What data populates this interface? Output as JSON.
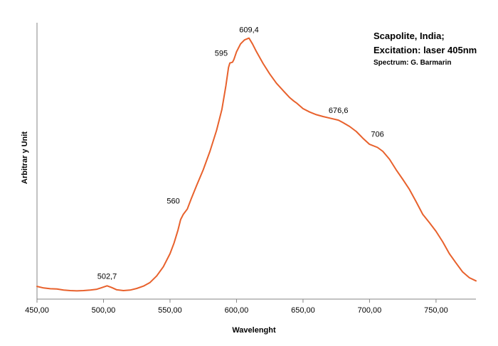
{
  "chart_data": {
    "type": "line",
    "title_lines": [
      "Scapolite, India;",
      "Excitation: laser 405nm"
    ],
    "credit": "Spectrum: G. Barmarin",
    "xlabel": "Wavelenght",
    "ylabel": "Arbitrar y Unit",
    "xlim": [
      450,
      780
    ],
    "ylim": [
      0,
      1
    ],
    "x_ticks": [
      450,
      500,
      550,
      600,
      650,
      700,
      750
    ],
    "x_tick_labels": [
      "450,00",
      "500,00",
      "550,00",
      "600,00",
      "650,00",
      "700,00",
      "750,00"
    ],
    "grid": false,
    "legend": "none",
    "series_color": "#e8612c",
    "series": [
      {
        "x": [
          450,
          455,
          460,
          465,
          470,
          475,
          480,
          485,
          490,
          495,
          498,
          502.7,
          506,
          510,
          515,
          520,
          525,
          530,
          535,
          540,
          545,
          550,
          553,
          556,
          558,
          560,
          563,
          566,
          570,
          575,
          580,
          585,
          589,
          592,
          594,
          595,
          597,
          598,
          600,
          603,
          606,
          609.4,
          612,
          615,
          620,
          625,
          630,
          635,
          640,
          643,
          645,
          650,
          655,
          660,
          665,
          670,
          676.6,
          680,
          685,
          690,
          695,
          700,
          706,
          710,
          715,
          720,
          725,
          730,
          735,
          740,
          745,
          750,
          755,
          760,
          765,
          770,
          775,
          780
        ],
        "y": [
          0.035,
          0.029,
          0.026,
          0.025,
          0.021,
          0.019,
          0.018,
          0.019,
          0.021,
          0.024,
          0.029,
          0.037,
          0.031,
          0.022,
          0.019,
          0.021,
          0.027,
          0.036,
          0.05,
          0.075,
          0.11,
          0.16,
          0.2,
          0.25,
          0.29,
          0.31,
          0.33,
          0.37,
          0.42,
          0.48,
          0.55,
          0.63,
          0.71,
          0.8,
          0.87,
          0.887,
          0.89,
          0.9,
          0.93,
          0.96,
          0.975,
          0.982,
          0.96,
          0.93,
          0.885,
          0.845,
          0.81,
          0.782,
          0.755,
          0.742,
          0.735,
          0.713,
          0.7,
          0.69,
          0.683,
          0.677,
          0.669,
          0.66,
          0.645,
          0.626,
          0.6,
          0.577,
          0.565,
          0.55,
          0.52,
          0.48,
          0.443,
          0.405,
          0.358,
          0.31,
          0.278,
          0.245,
          0.205,
          0.16,
          0.124,
          0.09,
          0.068,
          0.056
        ]
      }
    ],
    "annotations": [
      {
        "label": "502,7",
        "x": 502.7,
        "y": 0.037
      },
      {
        "label": "560",
        "x": 560,
        "y": 0.31
      },
      {
        "label": "595",
        "x": 595,
        "y": 0.887
      },
      {
        "label": "609,4",
        "x": 609.4,
        "y": 0.982
      },
      {
        "label": "676,6",
        "x": 676.6,
        "y": 0.669
      },
      {
        "label": "706",
        "x": 706,
        "y": 0.565
      }
    ]
  }
}
